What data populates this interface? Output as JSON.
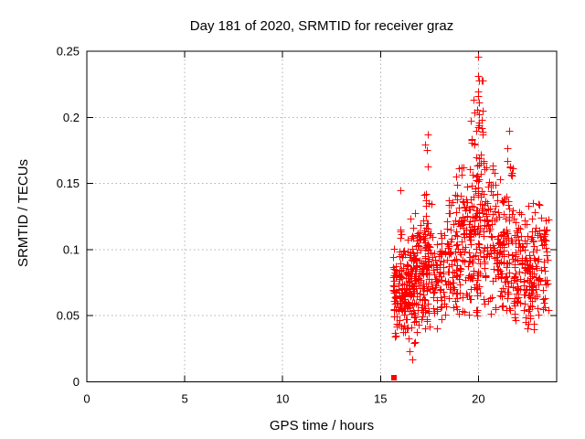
{
  "chart_data": {
    "type": "scatter",
    "title": "Day 181 of 2020, SRMTID for receiver graz",
    "xlabel": "GPS time / hours",
    "ylabel": "SRMTID / TECUs",
    "xlim": [
      0,
      24
    ],
    "ylim": [
      0,
      0.25
    ],
    "xticks": [
      0,
      5,
      10,
      15,
      20
    ],
    "xtick_labels": [
      "0",
      "5",
      "10",
      "15",
      "20"
    ],
    "yticks": [
      0,
      0.05,
      0.1,
      0.15,
      0.2,
      0.25
    ],
    "ytick_labels": [
      "0",
      "0.05",
      "0.1",
      "0.15",
      "0.2",
      "0.25"
    ],
    "grid": "dotted",
    "grid_color": "#b0b0b0",
    "axis_color": "#000000",
    "background_color": "#ffffff",
    "marker": "plus",
    "marker_color": "#ff0000",
    "legend": "none",
    "special_points": [
      {
        "x": 15.7,
        "y": 0.003,
        "marker": "filled-square",
        "color": "#ff0000"
      }
    ],
    "extreme_points": [
      [
        19.98,
        0.246
      ],
      [
        20.0,
        0.231
      ],
      [
        20.02,
        0.228
      ],
      [
        20.0,
        0.216
      ],
      [
        19.96,
        0.206
      ],
      [
        20.04,
        0.196
      ],
      [
        19.9,
        0.19
      ],
      [
        20.2,
        0.189
      ],
      [
        19.65,
        0.183
      ],
      [
        17.4,
        0.187
      ],
      [
        17.38,
        0.175
      ],
      [
        17.42,
        0.163
      ],
      [
        21.55,
        0.19
      ],
      [
        21.5,
        0.177
      ],
      [
        21.6,
        0.162
      ],
      [
        18.85,
        0.155
      ],
      [
        16.0,
        0.145
      ],
      [
        16.6,
        0.017
      ],
      [
        16.5,
        0.023
      ]
    ],
    "point_clusters": [
      {
        "t0": 15.62,
        "t1": 16.0,
        "n": 55,
        "mean": 0.068,
        "sd": 0.018,
        "min": 0.028,
        "max": 0.105
      },
      {
        "t0": 16.0,
        "t1": 16.5,
        "n": 90,
        "mean": 0.07,
        "sd": 0.02,
        "min": 0.02,
        "max": 0.145
      },
      {
        "t0": 16.5,
        "t1": 17.0,
        "n": 90,
        "mean": 0.078,
        "sd": 0.022,
        "min": 0.017,
        "max": 0.135
      },
      {
        "t0": 17.0,
        "t1": 17.5,
        "n": 75,
        "mean": 0.082,
        "sd": 0.025,
        "min": 0.035,
        "max": 0.152
      },
      {
        "t0": 17.25,
        "t1": 17.6,
        "n": 30,
        "mean": 0.105,
        "sd": 0.035,
        "min": 0.05,
        "max": 0.185
      },
      {
        "t0": 17.6,
        "t1": 18.4,
        "n": 70,
        "mean": 0.075,
        "sd": 0.02,
        "min": 0.038,
        "max": 0.13
      },
      {
        "t0": 18.4,
        "t1": 19.0,
        "n": 70,
        "mean": 0.09,
        "sd": 0.028,
        "min": 0.042,
        "max": 0.155
      },
      {
        "t0": 19.0,
        "t1": 19.6,
        "n": 75,
        "mean": 0.1,
        "sd": 0.03,
        "min": 0.05,
        "max": 0.17
      },
      {
        "t0": 19.6,
        "t1": 20.1,
        "n": 85,
        "mean": 0.115,
        "sd": 0.038,
        "min": 0.05,
        "max": 0.22
      },
      {
        "t0": 19.95,
        "t1": 20.25,
        "n": 28,
        "mean": 0.16,
        "sd": 0.04,
        "min": 0.1,
        "max": 0.245
      },
      {
        "t0": 20.25,
        "t1": 20.9,
        "n": 75,
        "mean": 0.11,
        "sd": 0.03,
        "min": 0.05,
        "max": 0.185
      },
      {
        "t0": 20.9,
        "t1": 21.4,
        "n": 70,
        "mean": 0.093,
        "sd": 0.027,
        "min": 0.045,
        "max": 0.16
      },
      {
        "t0": 21.4,
        "t1": 21.8,
        "n": 45,
        "mean": 0.105,
        "sd": 0.035,
        "min": 0.05,
        "max": 0.19
      },
      {
        "t0": 21.8,
        "t1": 22.5,
        "n": 85,
        "mean": 0.085,
        "sd": 0.024,
        "min": 0.04,
        "max": 0.147
      },
      {
        "t0": 22.5,
        "t1": 23.05,
        "n": 75,
        "mean": 0.078,
        "sd": 0.024,
        "min": 0.033,
        "max": 0.14
      },
      {
        "t0": 23.05,
        "t1": 23.6,
        "n": 45,
        "mean": 0.082,
        "sd": 0.028,
        "min": 0.04,
        "max": 0.145
      }
    ],
    "seed": 20181
  }
}
